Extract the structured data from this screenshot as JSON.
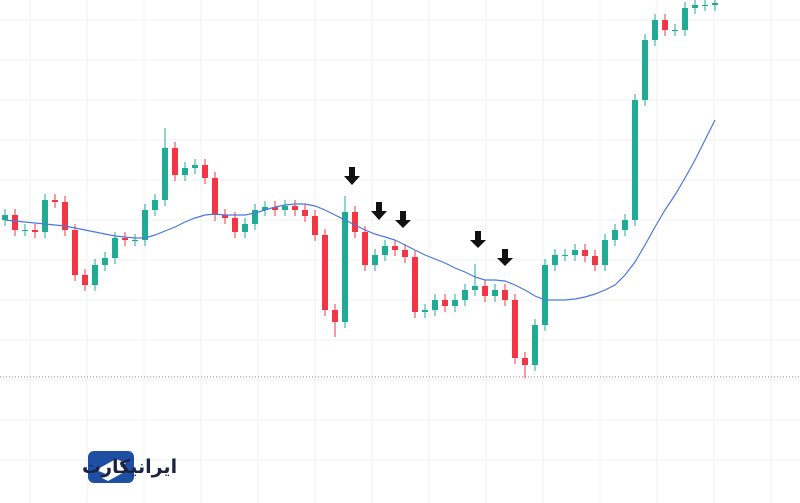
{
  "chart_data": {
    "type": "candlestick",
    "ylim": [
      0,
      500
    ],
    "yticks": [
      40,
      80,
      120,
      160,
      200,
      240,
      280,
      320,
      360,
      400,
      440,
      480
    ],
    "grid": true,
    "up_color": "#22ab94",
    "down_color": "#f23645",
    "ma_color": "#4a78e0",
    "reference_line": 123,
    "open": [
      280,
      285,
      270,
      270,
      268,
      300,
      298,
      270,
      225,
      215,
      235,
      242,
      262,
      260,
      260,
      290,
      300,
      352,
      325,
      332,
      335,
      322,
      285,
      282,
      268,
      276,
      290,
      293,
      290,
      294,
      290,
      284,
      265,
      190,
      178,
      288,
      268,
      235,
      245,
      254,
      250,
      243,
      188,
      190,
      200,
      194,
      200,
      210,
      214,
      204,
      210,
      200,
      142,
      135,
      175,
      235,
      245,
      245,
      250,
      244,
      235,
      260,
      270,
      280,
      400,
      460,
      480,
      470,
      470,
      492,
      495,
      495
    ],
    "high": [
      291,
      291,
      276,
      276,
      306,
      306,
      304,
      276,
      231,
      241,
      248,
      268,
      268,
      266,
      296,
      306,
      372,
      358,
      338,
      341,
      341,
      328,
      291,
      288,
      282,
      296,
      299,
      299,
      300,
      300,
      296,
      290,
      271,
      196,
      304,
      294,
      274,
      251,
      260,
      260,
      256,
      249,
      196,
      206,
      206,
      206,
      216,
      236,
      220,
      216,
      216,
      206,
      148,
      181,
      241,
      251,
      251,
      256,
      256,
      250,
      266,
      276,
      286,
      406,
      466,
      486,
      486,
      476,
      498,
      501,
      501,
      503
    ],
    "low": [
      274,
      264,
      264,
      262,
      262,
      292,
      264,
      219,
      209,
      209,
      229,
      236,
      254,
      254,
      254,
      284,
      294,
      319,
      319,
      326,
      316,
      279,
      276,
      262,
      262,
      270,
      284,
      284,
      284,
      284,
      278,
      259,
      184,
      163,
      172,
      262,
      229,
      229,
      239,
      244,
      237,
      182,
      182,
      184,
      188,
      188,
      194,
      204,
      198,
      198,
      194,
      136,
      122,
      129,
      169,
      229,
      239,
      239,
      238,
      229,
      229,
      254,
      264,
      274,
      394,
      454,
      464,
      464,
      464,
      486,
      489,
      489
    ],
    "close": [
      285,
      270,
      270,
      268,
      300,
      298,
      270,
      225,
      215,
      235,
      242,
      262,
      260,
      260,
      290,
      300,
      352,
      325,
      332,
      335,
      322,
      285,
      282,
      268,
      276,
      290,
      293,
      290,
      294,
      290,
      284,
      265,
      190,
      178,
      288,
      268,
      235,
      245,
      254,
      250,
      243,
      188,
      190,
      200,
      194,
      200,
      210,
      214,
      204,
      210,
      200,
      142,
      135,
      175,
      235,
      245,
      245,
      250,
      244,
      235,
      260,
      270,
      280,
      400,
      460,
      480,
      470,
      470,
      492,
      495,
      495,
      497
    ],
    "ma": [
      280,
      279,
      278,
      277,
      276,
      275,
      274,
      272,
      270,
      268,
      266,
      264,
      263,
      262,
      262,
      265,
      269,
      273,
      278,
      282,
      285,
      286,
      285,
      285,
      285,
      287,
      290,
      293,
      295,
      296,
      296,
      294,
      290,
      285,
      280,
      275,
      270,
      266,
      263,
      260,
      255,
      250,
      245,
      241,
      237,
      232,
      228,
      223,
      220,
      220,
      219,
      215,
      210,
      204,
      200,
      200,
      200,
      201,
      203,
      206,
      210,
      215,
      225,
      238,
      255,
      273,
      290,
      305,
      322,
      340,
      360,
      380
    ]
  },
  "watermark": {
    "text": "ایرانیکارت"
  }
}
